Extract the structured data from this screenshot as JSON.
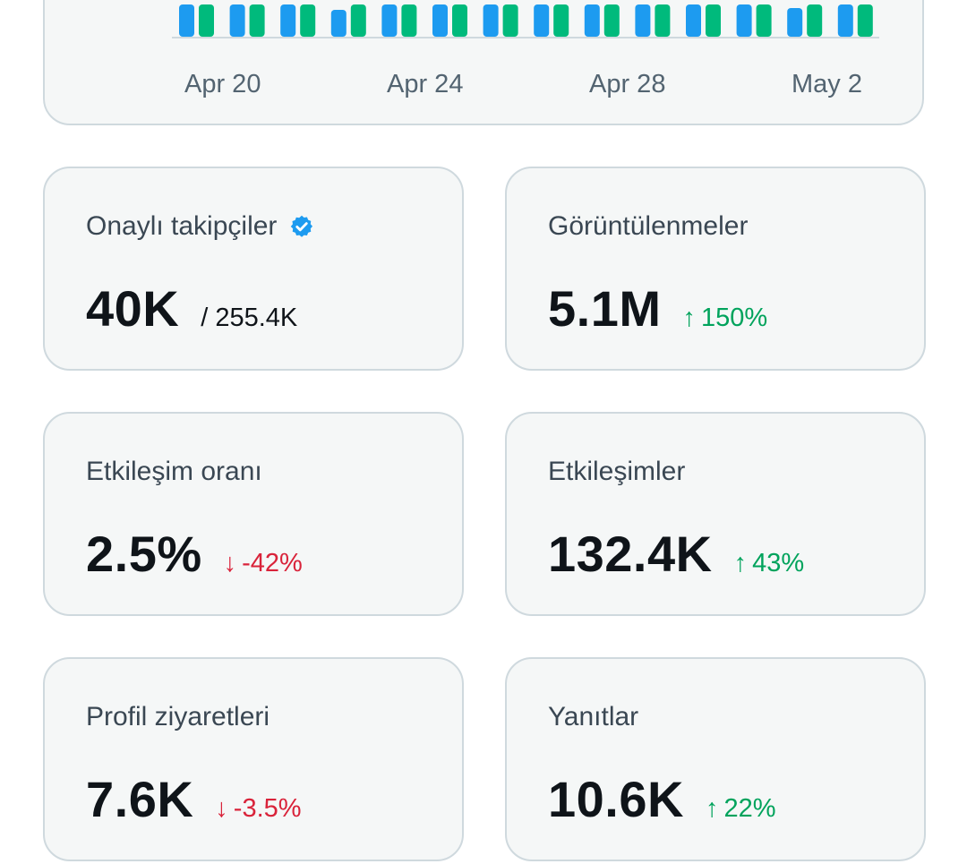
{
  "chart_data": {
    "type": "bar",
    "x_tick_labels": [
      "Apr 20",
      "Apr 24",
      "Apr 28",
      "May 2"
    ],
    "colors": {
      "blue": "#1d9bf0",
      "green": "#00ba7c"
    }
  },
  "cards": [
    {
      "label": "Onaylı takipçiler",
      "value": "40K",
      "sub": "/ 255.4K",
      "verified": true
    },
    {
      "label": "Görüntülenmeler",
      "value": "5.1M",
      "delta": "150%",
      "direction": "up"
    },
    {
      "label": "Etkileşim oranı",
      "value": "2.5%",
      "delta": "-42%",
      "direction": "down"
    },
    {
      "label": "Etkileşimler",
      "value": "132.4K",
      "delta": "43%",
      "direction": "up"
    },
    {
      "label": "Profil ziyaretleri",
      "value": "7.6K",
      "delta": "-3.5%",
      "direction": "down"
    },
    {
      "label": "Yanıtlar",
      "value": "10.6K",
      "delta": "22%",
      "direction": "up"
    }
  ],
  "icons": {
    "verified": "verified-badge-icon",
    "up": "arrow-up-icon",
    "down": "arrow-down-icon"
  }
}
